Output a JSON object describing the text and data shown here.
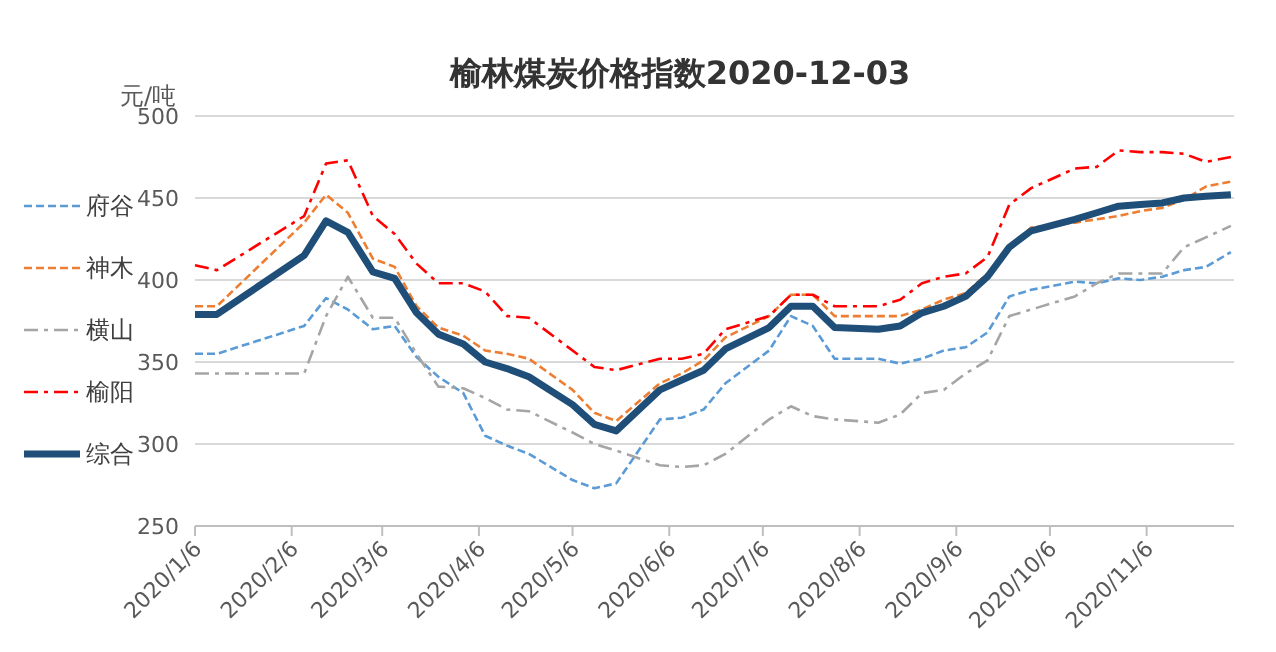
{
  "chart_data": {
    "type": "line",
    "title": "榆林煤炭价格指数2020-12-03",
    "ylabel": "元/吨",
    "x": [
      "2020-01-06",
      "2020-01-13",
      "2020-02-10",
      "2020-02-17",
      "2020-02-24",
      "2020-03-03",
      "2020-03-10",
      "2020-03-17",
      "2020-03-24",
      "2020-04-01",
      "2020-04-08",
      "2020-04-15",
      "2020-04-22",
      "2020-05-06",
      "2020-05-13",
      "2020-05-20",
      "2020-06-03",
      "2020-06-10",
      "2020-06-17",
      "2020-06-24",
      "2020-07-08",
      "2020-07-15",
      "2020-07-22",
      "2020-07-29",
      "2020-08-12",
      "2020-08-19",
      "2020-08-26",
      "2020-09-02",
      "2020-09-09",
      "2020-09-16",
      "2020-09-23",
      "2020-09-30",
      "2020-10-14",
      "2020-10-21",
      "2020-10-28",
      "2020-11-04",
      "2020-11-11",
      "2020-11-18",
      "2020-11-25",
      "2020-12-03"
    ],
    "series": [
      {
        "name": "府谷",
        "color": "#5b9bd5",
        "line_style": "dashed",
        "values": [
          355,
          355,
          372,
          389,
          382,
          370,
          372,
          353,
          341,
          331,
          305,
          299,
          294,
          278,
          273,
          276,
          315,
          316,
          321,
          337,
          357,
          378,
          372,
          352,
          352,
          349,
          352,
          357,
          359,
          368,
          390,
          394,
          399,
          398,
          401,
          400,
          402,
          406,
          408,
          417
        ]
      },
      {
        "name": "神木",
        "color": "#ed7d31",
        "line_style": "dashed",
        "values": [
          384,
          384,
          435,
          452,
          441,
          413,
          408,
          384,
          371,
          366,
          357,
          355,
          352,
          333,
          319,
          314,
          337,
          343,
          351,
          365,
          378,
          391,
          391,
          378,
          378,
          378,
          382,
          388,
          392,
          404,
          420,
          432,
          435,
          437,
          439,
          442,
          444,
          449,
          457,
          460
        ]
      },
      {
        "name": "横山",
        "color": "#a5a5a5",
        "line_style": "dashdot",
        "values": [
          343,
          343,
          343,
          378,
          402,
          377,
          377,
          355,
          335,
          334,
          328,
          321,
          320,
          307,
          300,
          296,
          287,
          286,
          287,
          294,
          315,
          323,
          317,
          315,
          313,
          318,
          331,
          333,
          343,
          351,
          378,
          382,
          390,
          398,
          404,
          404,
          404,
          420,
          426,
          433
        ]
      },
      {
        "name": "榆阳",
        "color": "#ff0000",
        "line_style": "dashdot",
        "values": [
          409,
          406,
          439,
          471,
          473,
          439,
          428,
          410,
          398,
          398,
          393,
          378,
          377,
          357,
          347,
          345,
          352,
          352,
          355,
          370,
          378,
          391,
          391,
          384,
          384,
          388,
          398,
          402,
          404,
          414,
          446,
          456,
          468,
          469,
          479,
          478,
          478,
          477,
          472,
          475
        ]
      },
      {
        "name": "综合",
        "color": "#1f4e79",
        "line_style": "solid",
        "values": [
          379,
          379,
          415,
          436,
          429,
          405,
          401,
          380,
          367,
          361,
          350,
          346,
          341,
          324,
          312,
          308,
          333,
          339,
          345,
          358,
          371,
          384,
          384,
          371,
          370,
          372,
          380,
          384,
          390,
          402,
          420,
          430,
          437,
          441,
          445,
          446,
          447,
          450,
          451,
          452
        ]
      }
    ],
    "xlim": [
      "2020-01-06",
      "2020-12-04"
    ],
    "xticks": [
      {
        "value": "2020-01-06",
        "label": "2020/1/6"
      },
      {
        "value": "2020-02-06",
        "label": "2020/2/6"
      },
      {
        "value": "2020-03-06",
        "label": "2020/3/6"
      },
      {
        "value": "2020-04-06",
        "label": "2020/4/6"
      },
      {
        "value": "2020-05-06",
        "label": "2020/5/6"
      },
      {
        "value": "2020-06-06",
        "label": "2020/6/6"
      },
      {
        "value": "2020-07-06",
        "label": "2020/7/6"
      },
      {
        "value": "2020-08-06",
        "label": "2020/8/6"
      },
      {
        "value": "2020-09-06",
        "label": "2020/9/6"
      },
      {
        "value": "2020-10-06",
        "label": "2020/10/6"
      },
      {
        "value": "2020-11-06",
        "label": "2020/11/6"
      }
    ],
    "ylim": [
      250,
      500
    ],
    "yticks": [
      250,
      300,
      350,
      400,
      450,
      500
    ],
    "grid": "y",
    "legend": "left",
    "marker": "none"
  }
}
